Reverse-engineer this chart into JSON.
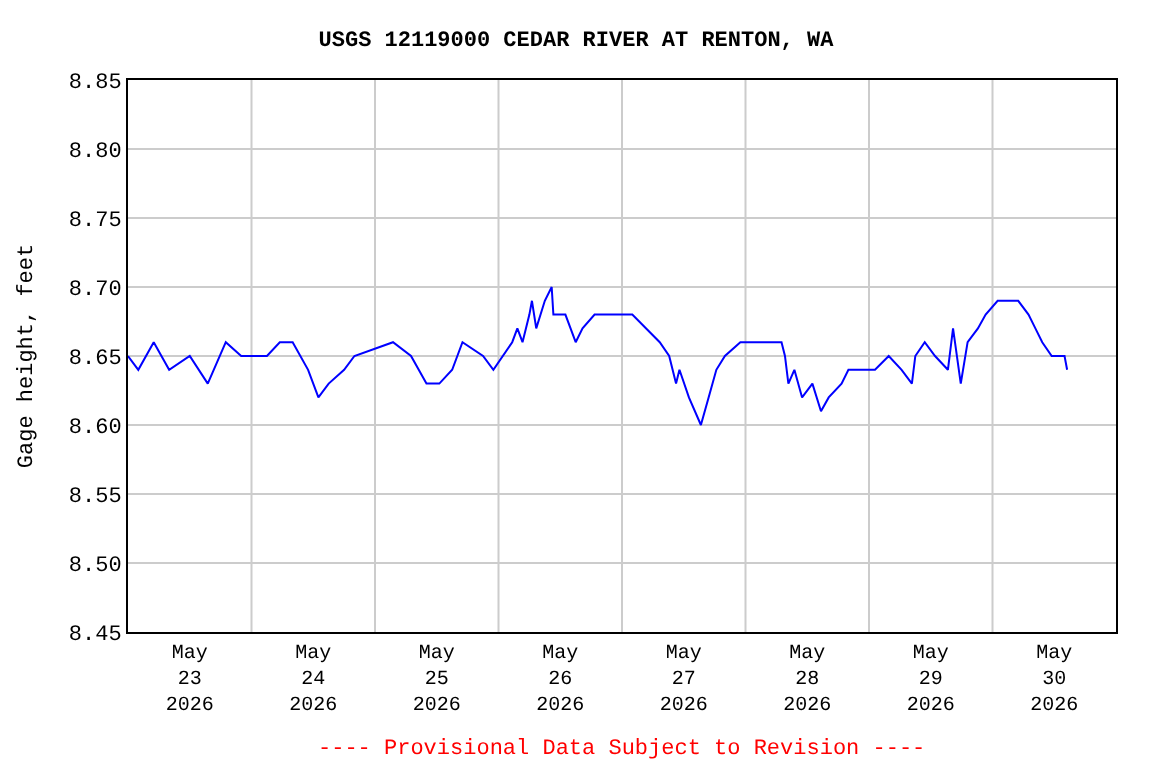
{
  "chart_data": {
    "type": "line",
    "title": "USGS 12119000 CEDAR RIVER AT RENTON, WA",
    "ylabel": "Gage height, feet",
    "x": [
      "2026-05-23T00:00",
      "2026-05-23T02:00",
      "2026-05-23T05:00",
      "2026-05-23T08:00",
      "2026-05-23T12:00",
      "2026-05-23T15:30",
      "2026-05-23T19:00",
      "2026-05-23T22:00",
      "2026-05-24T03:00",
      "2026-05-24T05:30",
      "2026-05-24T08:00",
      "2026-05-24T11:00",
      "2026-05-24T13:00",
      "2026-05-24T15:00",
      "2026-05-24T18:00",
      "2026-05-24T20:00",
      "2026-05-25T03:30",
      "2026-05-25T07:00",
      "2026-05-25T10:00",
      "2026-05-25T12:30",
      "2026-05-25T15:00",
      "2026-05-25T17:00",
      "2026-05-25T21:00",
      "2026-05-25T23:00",
      "2026-05-26T02:40",
      "2026-05-26T03:40",
      "2026-05-26T04:40",
      "2026-05-26T06:00",
      "2026-05-26T06:30",
      "2026-05-26T07:20",
      "2026-05-26T09:00",
      "2026-05-26T10:20",
      "2026-05-26T10:40",
      "2026-05-26T11:40",
      "2026-05-26T13:00",
      "2026-05-26T15:00",
      "2026-05-26T16:20",
      "2026-05-26T18:40",
      "2026-05-26T22:00",
      "2026-05-27T02:00",
      "2026-05-27T07:20",
      "2026-05-27T09:10",
      "2026-05-27T10:30",
      "2026-05-27T11:10",
      "2026-05-27T13:00",
      "2026-05-27T15:20",
      "2026-05-27T16:50",
      "2026-05-27T18:20",
      "2026-05-27T20:00",
      "2026-05-27T23:00",
      "2026-05-28T07:00",
      "2026-05-28T07:40",
      "2026-05-28T08:20",
      "2026-05-28T09:30",
      "2026-05-28T11:00",
      "2026-05-28T13:00",
      "2026-05-28T14:40",
      "2026-05-28T16:10",
      "2026-05-28T18:40",
      "2026-05-28T20:00",
      "2026-05-29T01:10",
      "2026-05-29T03:50",
      "2026-05-29T06:20",
      "2026-05-29T08:20",
      "2026-05-29T09:00",
      "2026-05-29T10:50",
      "2026-05-29T12:50",
      "2026-05-29T15:20",
      "2026-05-29T16:20",
      "2026-05-29T17:50",
      "2026-05-29T19:10",
      "2026-05-29T21:10",
      "2026-05-29T22:40",
      "2026-05-30T01:00",
      "2026-05-30T05:00",
      "2026-05-30T07:00",
      "2026-05-30T08:20",
      "2026-05-30T09:40",
      "2026-05-30T11:30",
      "2026-05-30T14:00",
      "2026-05-30T14:30"
    ],
    "series": [
      {
        "color": "#0000ff",
        "values": [
          8.65,
          8.64,
          8.66,
          8.64,
          8.65,
          8.63,
          8.66,
          8.65,
          8.65,
          8.66,
          8.66,
          8.64,
          8.62,
          8.63,
          8.64,
          8.65,
          8.66,
          8.65,
          8.63,
          8.63,
          8.64,
          8.66,
          8.65,
          8.64,
          8.66,
          8.67,
          8.66,
          8.68,
          8.69,
          8.67,
          8.69,
          8.7,
          8.68,
          8.68,
          8.68,
          8.66,
          8.67,
          8.68,
          8.68,
          8.68,
          8.66,
          8.65,
          8.63,
          8.64,
          8.62,
          8.6,
          8.62,
          8.64,
          8.65,
          8.66,
          8.66,
          8.65,
          8.63,
          8.64,
          8.62,
          8.63,
          8.61,
          8.62,
          8.63,
          8.64,
          8.64,
          8.65,
          8.64,
          8.63,
          8.65,
          8.66,
          8.65,
          8.64,
          8.67,
          8.63,
          8.66,
          8.67,
          8.68,
          8.69,
          8.69,
          8.68,
          8.67,
          8.66,
          8.65,
          8.65,
          8.64
        ]
      }
    ],
    "xlim": [
      "2026-05-23T00:00",
      "2026-05-31T00:00"
    ],
    "xticks": [
      {
        "value": "2026-05-23T12:00",
        "label": "May\n23\n2026"
      },
      {
        "value": "2026-05-24T00:00",
        "label": null
      },
      {
        "value": "2026-05-24T12:00",
        "label": "May\n24\n2026"
      },
      {
        "value": "2026-05-25T00:00",
        "label": null
      },
      {
        "value": "2026-05-25T12:00",
        "label": "May\n25\n2026"
      },
      {
        "value": "2026-05-26T00:00",
        "label": null
      },
      {
        "value": "2026-05-26T12:00",
        "label": "May\n26\n2026"
      },
      {
        "value": "2026-05-27T00:00",
        "label": null
      },
      {
        "value": "2026-05-27T12:00",
        "label": "May\n27\n2026"
      },
      {
        "value": "2026-05-28T00:00",
        "label": null
      },
      {
        "value": "2026-05-28T12:00",
        "label": "May\n28\n2026"
      },
      {
        "value": "2026-05-29T00:00",
        "label": null
      },
      {
        "value": "2026-05-29T12:00",
        "label": "May\n29\n2026"
      },
      {
        "value": "2026-05-30T00:00",
        "label": null
      },
      {
        "value": "2026-05-30T12:00",
        "label": "May\n30\n2026"
      }
    ],
    "ylim": [
      8.45,
      8.85
    ],
    "yticks": [
      {
        "value": 8.45,
        "label": "8.45"
      },
      {
        "value": 8.5,
        "label": "8.50"
      },
      {
        "value": 8.55,
        "label": "8.55"
      },
      {
        "value": 8.6,
        "label": "8.60"
      },
      {
        "value": 8.65,
        "label": "8.65"
      },
      {
        "value": 8.7,
        "label": "8.70"
      },
      {
        "value": 8.75,
        "label": "8.75"
      },
      {
        "value": 8.8,
        "label": "8.80"
      },
      {
        "value": 8.85,
        "label": "8.85"
      }
    ],
    "grid": true,
    "annotations": [
      "---- Provisional Data Subject to Revision ----"
    ]
  }
}
